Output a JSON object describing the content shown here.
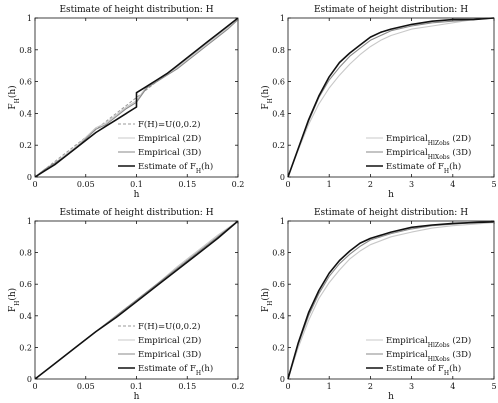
{
  "colors": {
    "uniform": "#9a9a9a",
    "emp2d": "#c8c8c8",
    "emp3d": "#8a8a8a",
    "estimate": "#111111",
    "axis": "#111111"
  },
  "chart_data": [
    {
      "type": "line",
      "title": "Estimate of height distribution: H",
      "xlabel": "h",
      "ylabel_main": "F",
      "ylabel_sub": "H",
      "ylabel_tail": "(h)",
      "xlim": [
        0,
        0.2
      ],
      "ylim": [
        0,
        1
      ],
      "xticks": [
        "0",
        "0.05",
        "0.1",
        "0.15",
        "0.2"
      ],
      "yticks": [
        "0",
        "0.2",
        "0.4",
        "0.6",
        "0.8",
        "1"
      ],
      "legend_position": "bottom-right",
      "legend": [
        {
          "text": "F(H)=U(0,0.2)",
          "sub": "",
          "tail": "",
          "style": "uniform"
        },
        {
          "text": "Empirical (2D)",
          "sub": "",
          "tail": "",
          "style": "emp2d"
        },
        {
          "text": "Empirical (3D)",
          "sub": "",
          "tail": "",
          "style": "emp3d"
        },
        {
          "text": "Estimate of F",
          "sub": "H",
          "tail": "(h)",
          "style": "estimate"
        }
      ],
      "series": [
        {
          "name": "F(H)=U(0,0.2)",
          "style": "uniform",
          "x": [
            0,
            0.2
          ],
          "y": [
            0,
            1
          ]
        },
        {
          "name": "Empirical (2D)",
          "style": "emp2d",
          "x": [
            0,
            0.01,
            0.02,
            0.03,
            0.04,
            0.05,
            0.06,
            0.07,
            0.08,
            0.09,
            0.1,
            0.11,
            0.12,
            0.13,
            0.14,
            0.15,
            0.16,
            0.17,
            0.18,
            0.19,
            0.2
          ],
          "y": [
            0,
            0.04,
            0.09,
            0.14,
            0.19,
            0.25,
            0.31,
            0.34,
            0.39,
            0.44,
            0.48,
            0.57,
            0.61,
            0.65,
            0.69,
            0.74,
            0.79,
            0.84,
            0.89,
            0.94,
            1.0
          ]
        },
        {
          "name": "Empirical (3D)",
          "style": "emp3d",
          "x": [
            0,
            0.01,
            0.02,
            0.03,
            0.04,
            0.05,
            0.06,
            0.07,
            0.08,
            0.09,
            0.1,
            0.11,
            0.12,
            0.13,
            0.14,
            0.15,
            0.16,
            0.17,
            0.18,
            0.19,
            0.2
          ],
          "y": [
            0,
            0.05,
            0.09,
            0.13,
            0.18,
            0.24,
            0.3,
            0.33,
            0.38,
            0.43,
            0.47,
            0.56,
            0.6,
            0.64,
            0.68,
            0.73,
            0.78,
            0.83,
            0.88,
            0.93,
            0.99
          ]
        },
        {
          "name": "Estimate of FH(h)",
          "style": "estimate",
          "x": [
            0,
            0.01,
            0.02,
            0.03,
            0.04,
            0.05,
            0.06,
            0.07,
            0.08,
            0.09,
            0.1,
            0.1,
            0.11,
            0.12,
            0.13,
            0.14,
            0.15,
            0.16,
            0.17,
            0.18,
            0.19,
            0.2
          ],
          "y": [
            0,
            0.04,
            0.08,
            0.13,
            0.18,
            0.23,
            0.28,
            0.32,
            0.36,
            0.4,
            0.44,
            0.53,
            0.57,
            0.61,
            0.65,
            0.7,
            0.75,
            0.8,
            0.85,
            0.9,
            0.95,
            1.0
          ]
        }
      ]
    },
    {
      "type": "line",
      "title": "Estimate of height distribution: H",
      "xlabel": "h",
      "ylabel_main": "F",
      "ylabel_sub": "H",
      "ylabel_tail": "(h)",
      "xlim": [
        0,
        5
      ],
      "ylim": [
        0,
        1
      ],
      "xticks": [
        "0",
        "1",
        "2",
        "3",
        "4",
        "5"
      ],
      "yticks": [
        "0",
        "0.2",
        "0.4",
        "0.6",
        "0.8",
        "1"
      ],
      "legend_position": "bottom-right",
      "legend": [
        {
          "text": "Empirical",
          "sub": "HlZobs",
          "tail": " (2D)",
          "style": "emp2d"
        },
        {
          "text": "Empirical",
          "sub": "HlXobs",
          "tail": " (3D)",
          "style": "emp3d"
        },
        {
          "text": "Estimate of F",
          "sub": "H",
          "tail": "(h)",
          "style": "estimate"
        }
      ],
      "series": [
        {
          "name": "Empirical HlZobs (2D)",
          "style": "emp2d",
          "x": [
            0,
            0.25,
            0.5,
            0.75,
            1,
            1.25,
            1.5,
            1.75,
            2,
            2.25,
            2.5,
            3,
            3.5,
            4,
            4.5,
            5
          ],
          "y": [
            0,
            0.17,
            0.33,
            0.46,
            0.56,
            0.64,
            0.71,
            0.77,
            0.82,
            0.86,
            0.89,
            0.93,
            0.95,
            0.97,
            0.99,
            1.0
          ]
        },
        {
          "name": "Empirical HlXobs (3D)",
          "style": "emp3d",
          "x": [
            0,
            0.25,
            0.5,
            0.75,
            1,
            1.25,
            1.5,
            1.75,
            2,
            2.25,
            2.5,
            3,
            3.5,
            4,
            4.5,
            5
          ],
          "y": [
            0,
            0.18,
            0.35,
            0.5,
            0.61,
            0.69,
            0.76,
            0.81,
            0.86,
            0.89,
            0.92,
            0.95,
            0.97,
            0.98,
            0.99,
            1.0
          ]
        },
        {
          "name": "Estimate of FH(h)",
          "style": "estimate",
          "x": [
            0,
            0.25,
            0.5,
            0.75,
            1,
            1.25,
            1.5,
            1.75,
            2,
            2.25,
            2.5,
            3,
            3.5,
            4,
            4.5,
            5
          ],
          "y": [
            0,
            0.18,
            0.36,
            0.51,
            0.63,
            0.72,
            0.78,
            0.83,
            0.88,
            0.91,
            0.93,
            0.96,
            0.98,
            0.99,
            0.99,
            1.0
          ]
        }
      ]
    },
    {
      "type": "line",
      "title": "Estimate of height distribution: H",
      "xlabel": "h",
      "ylabel_main": "F",
      "ylabel_sub": "H",
      "ylabel_tail": "(h)",
      "xlim": [
        0,
        0.2
      ],
      "ylim": [
        0,
        1
      ],
      "xticks": [
        "0",
        "0.05",
        "0.1",
        "0.15",
        "0.2"
      ],
      "yticks": [
        "0",
        "0.2",
        "0.4",
        "0.6",
        "0.8",
        "1"
      ],
      "legend_position": "bottom-right",
      "legend": [
        {
          "text": "F(H)=U(0,0.2)",
          "sub": "",
          "tail": "",
          "style": "uniform"
        },
        {
          "text": "Empirical (2D)",
          "sub": "",
          "tail": "",
          "style": "emp2d"
        },
        {
          "text": "Empirical (3D)",
          "sub": "",
          "tail": "",
          "style": "emp3d"
        },
        {
          "text": "Estimate of F",
          "sub": "H",
          "tail": "(h)",
          "style": "estimate"
        }
      ],
      "series": [
        {
          "name": "F(H)=U(0,0.2)",
          "style": "uniform",
          "x": [
            0,
            0.2
          ],
          "y": [
            0,
            1
          ]
        },
        {
          "name": "Empirical (2D)",
          "style": "emp2d",
          "x": [
            0,
            0.02,
            0.04,
            0.06,
            0.08,
            0.1,
            0.12,
            0.14,
            0.16,
            0.18,
            0.2
          ],
          "y": [
            0,
            0.1,
            0.2,
            0.3,
            0.4,
            0.5,
            0.6,
            0.71,
            0.81,
            0.91,
            1.0
          ]
        },
        {
          "name": "Empirical (3D)",
          "style": "emp3d",
          "x": [
            0,
            0.02,
            0.04,
            0.06,
            0.08,
            0.1,
            0.12,
            0.14,
            0.16,
            0.18,
            0.2
          ],
          "y": [
            0,
            0.1,
            0.2,
            0.3,
            0.4,
            0.5,
            0.6,
            0.7,
            0.8,
            0.9,
            1.0
          ]
        },
        {
          "name": "Estimate of FH(h)",
          "style": "estimate",
          "x": [
            0,
            0.02,
            0.04,
            0.06,
            0.08,
            0.1,
            0.12,
            0.14,
            0.16,
            0.18,
            0.2
          ],
          "y": [
            0,
            0.1,
            0.2,
            0.3,
            0.39,
            0.49,
            0.59,
            0.69,
            0.79,
            0.89,
            1.0
          ]
        }
      ]
    },
    {
      "type": "line",
      "title": "Estimate of height distribution: H",
      "xlabel": "h",
      "ylabel_main": "F",
      "ylabel_sub": "H",
      "ylabel_tail": "(h)",
      "xlim": [
        0,
        5
      ],
      "ylim": [
        0,
        1
      ],
      "xticks": [
        "0",
        "1",
        "2",
        "3",
        "4",
        "5"
      ],
      "yticks": [
        "0",
        "0.2",
        "0.4",
        "0.6",
        "0.8",
        "1"
      ],
      "legend_position": "bottom-right",
      "legend": [
        {
          "text": "Empirical",
          "sub": "HlZobs",
          "tail": " (2D)",
          "style": "emp2d"
        },
        {
          "text": "Empirical",
          "sub": "HlXobs",
          "tail": " (3D)",
          "style": "emp3d"
        },
        {
          "text": "Estimate of F",
          "sub": "H",
          "tail": "(h)",
          "style": "estimate"
        }
      ],
      "series": [
        {
          "name": "Empirical HlZobs (2D)",
          "style": "emp2d",
          "x": [
            0,
            0.25,
            0.5,
            0.75,
            1,
            1.25,
            1.5,
            1.75,
            2,
            2.5,
            3,
            3.5,
            4,
            4.5,
            5
          ],
          "y": [
            0,
            0.2,
            0.37,
            0.51,
            0.61,
            0.69,
            0.76,
            0.81,
            0.85,
            0.9,
            0.93,
            0.955,
            0.97,
            0.98,
            0.99
          ]
        },
        {
          "name": "Empirical HlXobs (3D)",
          "style": "emp3d",
          "x": [
            0,
            0.25,
            0.5,
            0.75,
            1,
            1.25,
            1.5,
            1.75,
            2,
            2.5,
            3,
            3.5,
            4,
            4.5,
            5
          ],
          "y": [
            0,
            0.22,
            0.4,
            0.54,
            0.65,
            0.73,
            0.79,
            0.84,
            0.88,
            0.92,
            0.95,
            0.97,
            0.98,
            0.99,
            0.995
          ]
        },
        {
          "name": "Estimate of FH(h)",
          "style": "estimate",
          "x": [
            0,
            0.25,
            0.5,
            0.75,
            1,
            1.25,
            1.5,
            1.75,
            2,
            2.5,
            3,
            3.5,
            4,
            4.5,
            5
          ],
          "y": [
            0,
            0.23,
            0.42,
            0.56,
            0.67,
            0.75,
            0.81,
            0.86,
            0.89,
            0.93,
            0.96,
            0.975,
            0.985,
            0.99,
            0.995
          ]
        }
      ]
    }
  ]
}
